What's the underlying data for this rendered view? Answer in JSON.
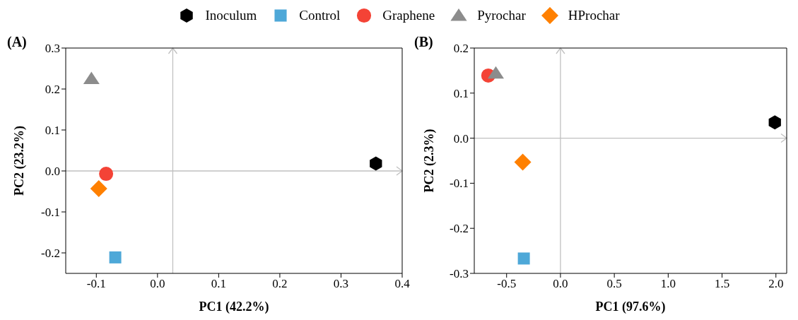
{
  "chart_data": [
    {
      "type": "scatter",
      "title": "(A)",
      "xlabel": "PC1 (42.2%)",
      "ylabel": "PC2 (23.2%)",
      "xlim": [
        -0.15,
        0.4
      ],
      "xticks": [
        {
          "value": -0.1,
          "label": "-0.1"
        },
        {
          "value": 0,
          "label": "0.0"
        },
        {
          "value": 0.1,
          "label": "0.1"
        },
        {
          "value": 0.2,
          "label": "0.2"
        },
        {
          "value": 0.3,
          "label": "0.3"
        },
        {
          "value": 0.4,
          "label": "0.4"
        }
      ],
      "ylim": [
        -0.25,
        0.3
      ],
      "yticks": [
        {
          "value": -0.2,
          "label": "-0.2"
        },
        {
          "value": -0.1,
          "label": "-0.1"
        },
        {
          "value": 0,
          "label": "0.0"
        },
        {
          "value": 0.1,
          "label": "0.1"
        },
        {
          "value": 0.2,
          "label": "0.2"
        },
        {
          "value": 0.3,
          "label": "0.3"
        }
      ],
      "grid": false,
      "legend": "top",
      "ref_lines": [
        {
          "axis": "x",
          "value": 0.025,
          "color": "#c0c0c0"
        },
        {
          "axis": "y",
          "value": 0,
          "color": "#c0c0c0"
        }
      ],
      "series": [
        {
          "name": "Inoculum",
          "color": "#000000",
          "x": [
            0.357
          ],
          "values": [
            0.018
          ]
        },
        {
          "name": "Control",
          "color": "#4ea8d8",
          "marker": "square",
          "x": [
            -0.069
          ],
          "values": [
            -0.211
          ]
        },
        {
          "name": "Graphene",
          "color": "#f44336",
          "marker": "circle",
          "x": [
            -0.084
          ],
          "values": [
            -0.007
          ]
        },
        {
          "name": "Pyrochar",
          "color": "#8c8c8c",
          "marker": "triangle",
          "x": [
            -0.108
          ],
          "values": [
            0.225
          ]
        },
        {
          "name": "HProchar",
          "color": "#ff8000",
          "marker": "diamond",
          "x": [
            -0.096
          ],
          "values": [
            -0.043
          ]
        }
      ]
    },
    {
      "type": "scatter",
      "title": "(B)",
      "xlabel": "PC1 (97.6%)",
      "ylabel": "PC2 (2.3%)",
      "xlim": [
        -0.8,
        2.1
      ],
      "xticks": [
        {
          "value": -0.5,
          "label": "-0.5"
        },
        {
          "value": 0,
          "label": "0.0"
        },
        {
          "value": 0.5,
          "label": "0.5"
        },
        {
          "value": 1,
          "label": "1.0"
        },
        {
          "value": 1.5,
          "label": "1.5"
        },
        {
          "value": 2,
          "label": "2.0"
        }
      ],
      "ylim": [
        -0.3,
        0.2
      ],
      "yticks": [
        {
          "value": -0.3,
          "label": "-0.3"
        },
        {
          "value": -0.2,
          "label": "-0.2"
        },
        {
          "value": -0.1,
          "label": "-0.1"
        },
        {
          "value": 0,
          "label": "0.0"
        },
        {
          "value": 0.1,
          "label": "0.1"
        },
        {
          "value": 0.2,
          "label": "0.2"
        }
      ],
      "grid": false,
      "ref_lines": [
        {
          "axis": "x",
          "value": 0,
          "color": "#c0c0c0"
        },
        {
          "axis": "y",
          "value": 0,
          "color": "#c0c0c0"
        }
      ],
      "series": [
        {
          "color": "#000000",
          "x": [
            1.99
          ],
          "values": [
            0.035
          ]
        },
        {
          "color": "#4ea8d8",
          "marker": "square",
          "x": [
            -0.34
          ],
          "values": [
            -0.267
          ]
        },
        {
          "color": "#f44336",
          "marker": "circle",
          "x": [
            -0.67
          ],
          "values": [
            0.139
          ]
        },
        {
          "color": "#8c8c8c",
          "marker": "triangle",
          "x": [
            -0.6
          ],
          "values": [
            0.144
          ]
        },
        {
          "color": "#ff8000",
          "marker": "diamond",
          "x": [
            -0.35
          ],
          "values": [
            -0.053
          ]
        }
      ]
    }
  ]
}
